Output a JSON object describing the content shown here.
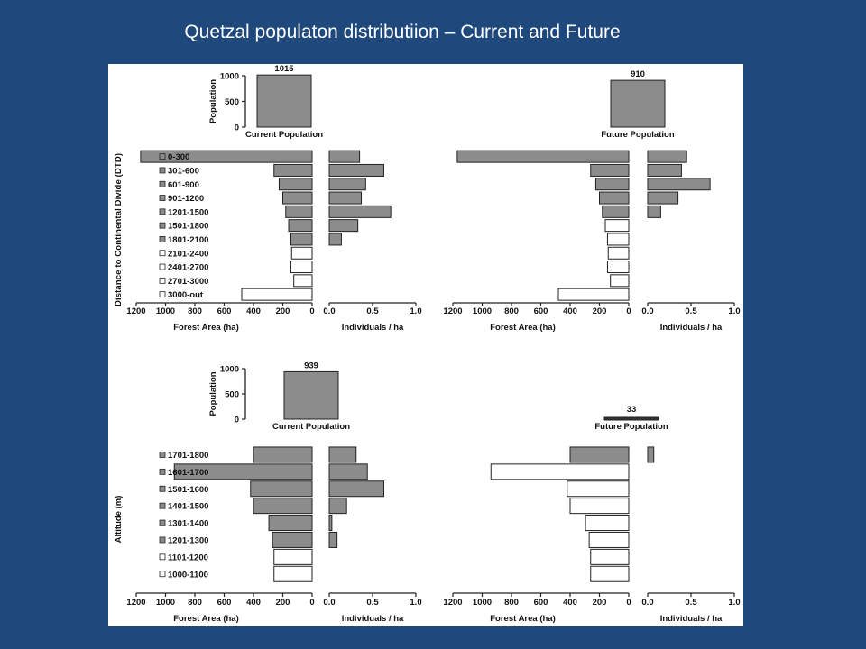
{
  "slide": {
    "title": "Quetzal populaton distributiion – Current and Future"
  },
  "colors": {
    "background": "#1f497d",
    "panel": "#ffffff",
    "filled_bar": "#8c8c8c",
    "empty_bar": "#ffffff",
    "axis": "#222222"
  },
  "chart_data": [
    {
      "type": "bar",
      "panel": "top-left",
      "row_axis_label": "Distance to Continental Divide (DTD)",
      "categories": [
        "0-300",
        "301-600",
        "601-900",
        "901-1200",
        "1201-1500",
        "1501-1800",
        "1801-2100",
        "2101-2400",
        "2401-2700",
        "2701-3000",
        "3000-out"
      ],
      "occupied": [
        true,
        true,
        true,
        true,
        true,
        true,
        true,
        false,
        false,
        false,
        false
      ],
      "population": {
        "value": 1015,
        "label": "Current Population",
        "ylabel": "Population",
        "yticks": [
          0,
          500,
          1000
        ]
      },
      "forest_area": {
        "xlabel": "Forest Area (ha)",
        "ticks": [
          1200,
          1000,
          800,
          600,
          400,
          200,
          0
        ],
        "values": [
          1170,
          260,
          225,
          200,
          180,
          160,
          145,
          140,
          145,
          125,
          480
        ]
      },
      "density": {
        "xlabel": "Individuals / ha",
        "ticks": [
          "0.0",
          "0.5",
          "1.0"
        ],
        "values": [
          0.35,
          0.63,
          0.42,
          0.37,
          0.71,
          0.33,
          0.14,
          0,
          0,
          0,
          0
        ]
      }
    },
    {
      "type": "bar",
      "panel": "top-right",
      "categories": [
        "0-300",
        "301-600",
        "601-900",
        "901-1200",
        "1201-1500",
        "1501-1800",
        "1801-2100",
        "2101-2400",
        "2401-2700",
        "2701-3000",
        "3000-out"
      ],
      "occupied": [
        true,
        true,
        true,
        true,
        true,
        false,
        false,
        false,
        false,
        false,
        false
      ],
      "population": {
        "value": 910,
        "label": "Future Population",
        "yticks": [
          0,
          500,
          1000
        ]
      },
      "forest_area": {
        "xlabel": "Forest Area (ha)",
        "ticks": [
          1200,
          1000,
          800,
          600,
          400,
          200,
          0
        ],
        "values": [
          1170,
          260,
          225,
          200,
          180,
          160,
          145,
          140,
          145,
          125,
          480
        ]
      },
      "density": {
        "xlabel": "Individuals / ha",
        "ticks": [
          "0.0",
          "0.5",
          "1.0"
        ],
        "values": [
          0.45,
          0.39,
          0.72,
          0.35,
          0.15,
          0,
          0,
          0,
          0,
          0,
          0
        ]
      }
    },
    {
      "type": "bar",
      "panel": "bottom-left",
      "row_axis_label": "Altitude (m)",
      "categories": [
        "1701-1800",
        "1601-1700",
        "1501-1600",
        "1401-1500",
        "1301-1400",
        "1201-1300",
        "1101-1200",
        "1000-1100"
      ],
      "occupied": [
        true,
        true,
        true,
        true,
        true,
        true,
        false,
        false
      ],
      "population": {
        "value": 939,
        "label": "Current Population",
        "ylabel": "Population",
        "yticks": [
          0,
          500,
          1000
        ]
      },
      "forest_area": {
        "xlabel": "Forest Area (ha)",
        "ticks": [
          1200,
          1000,
          800,
          600,
          400,
          200,
          0
        ],
        "values": [
          400,
          940,
          420,
          400,
          295,
          270,
          260,
          260
        ]
      },
      "density": {
        "xlabel": "Individuals / ha",
        "ticks": [
          "0.0",
          "0.5",
          "1.0"
        ],
        "values": [
          0.31,
          0.44,
          0.63,
          0.2,
          0.03,
          0.09,
          0,
          0
        ]
      }
    },
    {
      "type": "bar",
      "panel": "bottom-right",
      "categories": [
        "1701-1800",
        "1601-1700",
        "1501-1600",
        "1401-1500",
        "1301-1400",
        "1201-1300",
        "1101-1200",
        "1000-1100"
      ],
      "occupied": [
        true,
        false,
        false,
        false,
        false,
        false,
        false,
        false
      ],
      "population": {
        "value": 33,
        "label": "Future Population",
        "yticks": [
          0,
          500,
          1000
        ]
      },
      "forest_area": {
        "xlabel": "Forest Area (ha)",
        "ticks": [
          1200,
          1000,
          800,
          600,
          400,
          200,
          0
        ],
        "values": [
          400,
          940,
          420,
          400,
          295,
          270,
          260,
          260
        ]
      },
      "density": {
        "xlabel": "Individuals / ha",
        "ticks": [
          "0.0",
          "0.5",
          "1.0"
        ],
        "values": [
          0.07,
          0,
          0,
          0,
          0,
          0,
          0,
          0
        ]
      }
    }
  ]
}
